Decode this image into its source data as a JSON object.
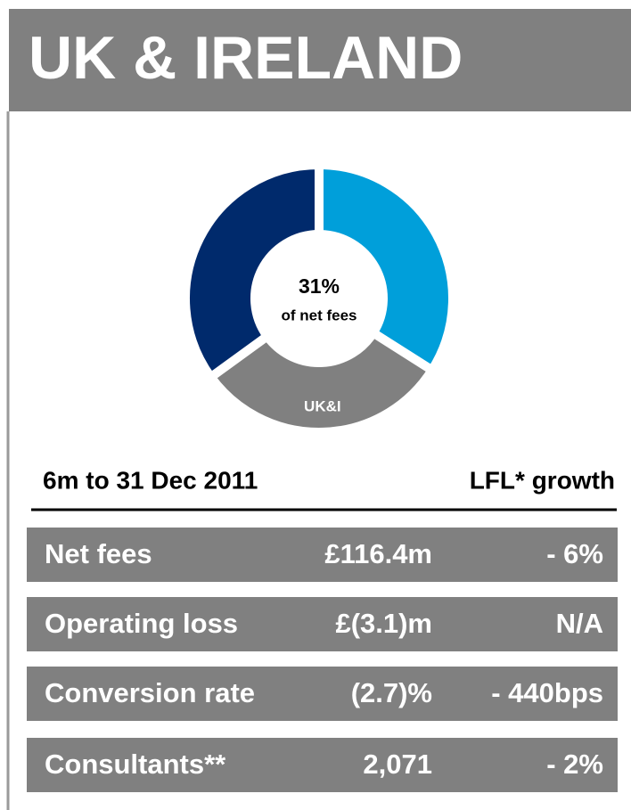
{
  "header": {
    "title": "UK & IRELAND"
  },
  "chart_data": {
    "type": "pie",
    "categories": [
      null,
      "UK&I",
      null
    ],
    "values": [
      34,
      31,
      35
    ],
    "value_labels": [
      null,
      "31%",
      null
    ],
    "colors": [
      "#009fda",
      "#808080",
      "#002a6c"
    ],
    "annotation": "of net fees",
    "donut": true
  },
  "table": {
    "header": [
      "6m to 31 Dec 2011",
      "LFL* growth"
    ],
    "rows": [
      [
        "Net fees",
        "£116.4m",
        "- 6%"
      ],
      [
        "Operating loss",
        "£(3.1)m",
        "N/A"
      ],
      [
        "Conversion rate",
        "(2.7)%",
        "- 440bps"
      ],
      [
        "Consultants**",
        "2,071",
        "- 2%"
      ]
    ]
  }
}
